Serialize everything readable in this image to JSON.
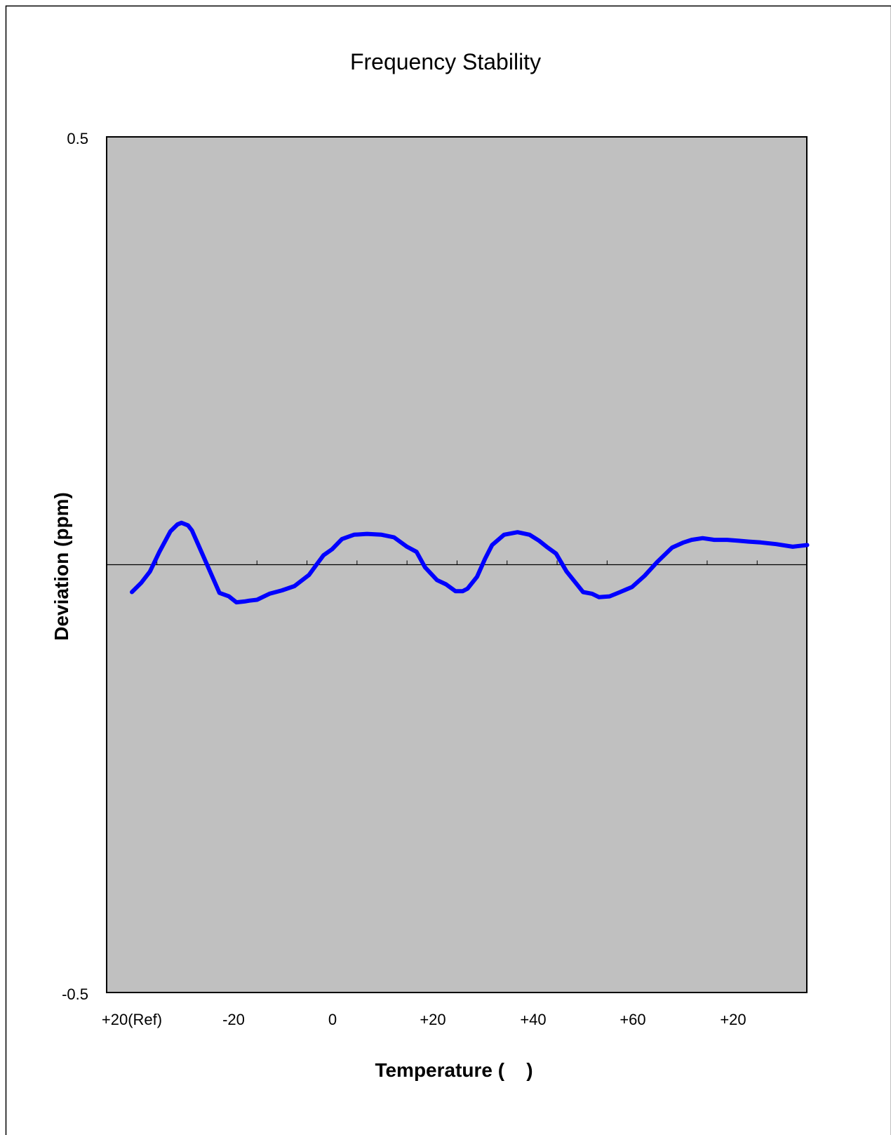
{
  "chart_data": {
    "type": "line",
    "title": "Frequency Stability",
    "xlabel": "Temperature (    )",
    "ylabel": "Deviation (ppm)",
    "ylim": [
      -0.5,
      0.5
    ],
    "y_tick_labels": [
      "0.5",
      "-0.5"
    ],
    "x_tick_labels": [
      "+20(Ref)",
      "-20",
      "0",
      "+20",
      "+40",
      "+60",
      "+20"
    ],
    "xlim": [
      0,
      14
    ],
    "grid": false,
    "legend": "none",
    "plot_background": "#c0c0c0",
    "colors": {
      "line": "#0000ff",
      "frame": "#000000",
      "zero_line": "#000000"
    },
    "series": [
      {
        "x": [
          0.0,
          0.19,
          0.36,
          0.55,
          0.77,
          0.91,
          0.99,
          1.12,
          1.2,
          1.33,
          1.54,
          1.75,
          1.94,
          2.09,
          2.25,
          2.35,
          2.5,
          2.75,
          3.0,
          3.25,
          3.54,
          3.69,
          3.83,
          4.0,
          4.2,
          4.44,
          4.7,
          4.99,
          5.24,
          5.5,
          5.69,
          5.86,
          6.1,
          6.28,
          6.47,
          6.61,
          6.71,
          6.9,
          7.06,
          7.2,
          7.44,
          7.71,
          7.95,
          8.14,
          8.29,
          8.48,
          8.69,
          8.91,
          9.02,
          9.2,
          9.34,
          9.55,
          9.76,
          10.0,
          10.25,
          10.5,
          10.8,
          11.03,
          11.19,
          11.41,
          11.64,
          11.9,
          12.13,
          12.33,
          12.57,
          12.88,
          13.21,
          13.5
        ],
        "y": [
          -0.032,
          -0.021,
          -0.008,
          0.015,
          0.039,
          0.047,
          0.049,
          0.046,
          0.04,
          0.023,
          -0.005,
          -0.033,
          -0.037,
          -0.044,
          -0.043,
          -0.042,
          -0.041,
          -0.034,
          -0.03,
          -0.025,
          -0.012,
          0.0,
          0.011,
          0.018,
          0.03,
          0.035,
          0.036,
          0.035,
          0.032,
          0.021,
          0.015,
          -0.003,
          -0.018,
          -0.023,
          -0.031,
          -0.031,
          -0.028,
          -0.014,
          0.007,
          0.023,
          0.035,
          0.038,
          0.035,
          0.028,
          0.021,
          0.013,
          -0.008,
          -0.024,
          -0.032,
          -0.034,
          -0.038,
          -0.037,
          -0.032,
          -0.026,
          -0.013,
          0.003,
          0.02,
          0.026,
          0.029,
          0.031,
          0.029,
          0.029,
          0.028,
          0.027,
          0.026,
          0.024,
          0.021,
          0.023
        ]
      }
    ]
  }
}
